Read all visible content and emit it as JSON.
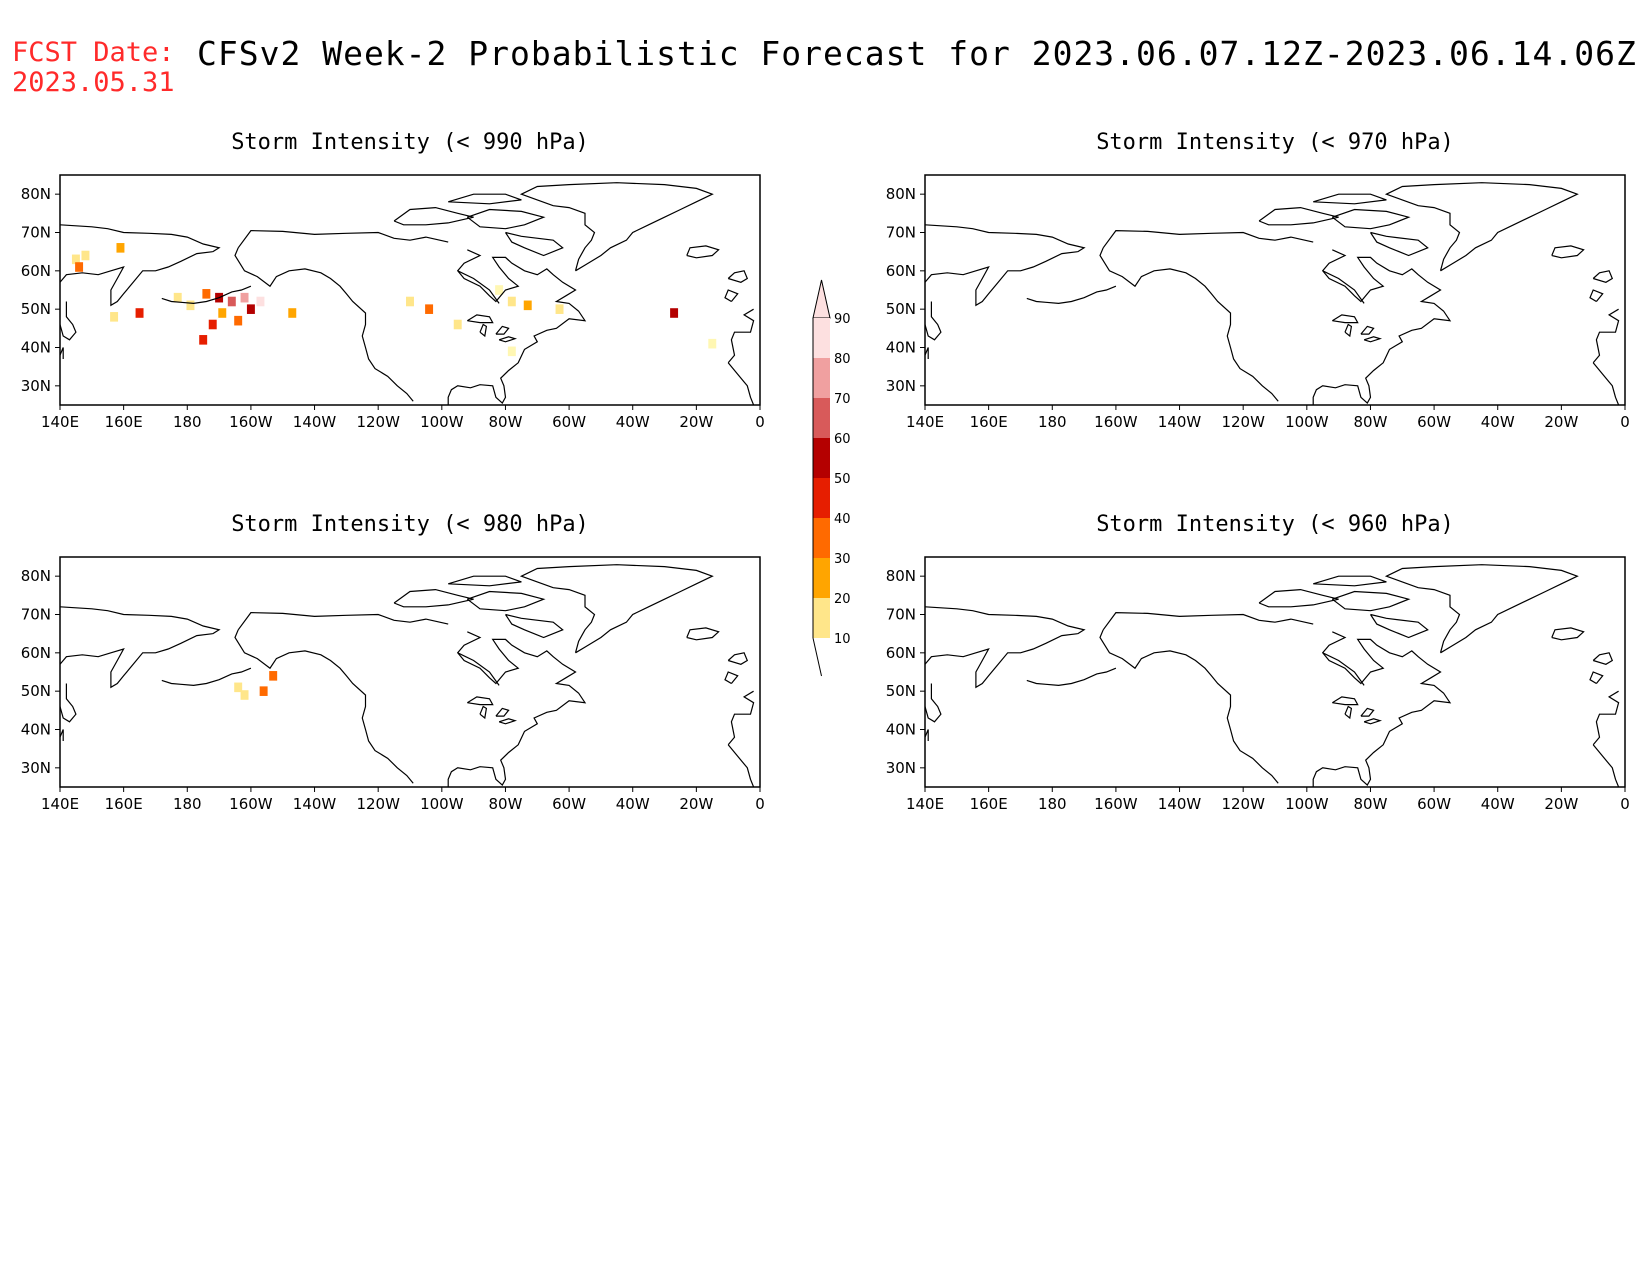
{
  "header": {
    "fcst_label": "FCST Date:",
    "fcst_date": "2023.05.31",
    "title": "CFSv2 Week-2 Probabilistic Forecast for 2023.06.07.12Z-2023.06.14.06Z"
  },
  "axes": {
    "lon_ticks": [
      "140E",
      "160E",
      "180",
      "160W",
      "140W",
      "120W",
      "100W",
      "80W",
      "60W",
      "40W",
      "20W",
      "0"
    ],
    "lat_ticks": [
      "80N",
      "70N",
      "60N",
      "50N",
      "40N",
      "30N"
    ]
  },
  "panels": [
    {
      "id": "p990",
      "title": "Storm Intensity (< 990 hPa)"
    },
    {
      "id": "p970",
      "title": "Storm Intensity (< 970 hPa)"
    },
    {
      "id": "p980",
      "title": "Storm Intensity (< 980 hPa)"
    },
    {
      "id": "p960",
      "title": "Storm Intensity (< 960 hPa)"
    }
  ],
  "colorbar": {
    "levels": [
      "10",
      "20",
      "30",
      "40",
      "50",
      "60",
      "70",
      "80",
      "90"
    ],
    "colors": [
      "#fff7b3",
      "#ffe68a",
      "#ffa500",
      "#ff6a00",
      "#e61e00",
      "#b40000",
      "#d85a5a",
      "#f0a0a0",
      "#fde0e0"
    ]
  },
  "probability_cells": {
    "p990": [
      {
        "lon": 145,
        "lat": 63,
        "p": 25
      },
      {
        "lon": 146,
        "lat": 61,
        "p": 45
      },
      {
        "lon": 148,
        "lat": 64,
        "p": 20
      },
      {
        "lon": 159,
        "lat": 66,
        "p": 35
      },
      {
        "lon": 157,
        "lat": 48,
        "p": 25
      },
      {
        "lon": 165,
        "lat": 49,
        "p": 50
      },
      {
        "lon": 177,
        "lat": 53,
        "p": 20
      },
      {
        "lon": 181,
        "lat": 51,
        "p": 25
      },
      {
        "lon": 186,
        "lat": 54,
        "p": 40
      },
      {
        "lon": 190,
        "lat": 53,
        "p": 60
      },
      {
        "lon": 194,
        "lat": 52,
        "p": 70
      },
      {
        "lon": 198,
        "lat": 53,
        "p": 80
      },
      {
        "lon": 200,
        "lat": 50,
        "p": 65
      },
      {
        "lon": 191,
        "lat": 49,
        "p": 35
      },
      {
        "lon": 188,
        "lat": 46,
        "p": 55
      },
      {
        "lon": 185,
        "lat": 42,
        "p": 50
      },
      {
        "lon": 196,
        "lat": 47,
        "p": 45
      },
      {
        "lon": 203,
        "lat": 52,
        "p": 90
      },
      {
        "lon": 213,
        "lat": 49,
        "p": 30
      },
      {
        "lon": 250,
        "lat": 52,
        "p": 20
      },
      {
        "lon": 256,
        "lat": 50,
        "p": 40
      },
      {
        "lon": 265,
        "lat": 46,
        "p": 25
      },
      {
        "lon": 278,
        "lat": 55,
        "p": 15
      },
      {
        "lon": 282,
        "lat": 52,
        "p": 20
      },
      {
        "lon": 287,
        "lat": 51,
        "p": 35
      },
      {
        "lon": 297,
        "lat": 50,
        "p": 25
      },
      {
        "lon": 333,
        "lat": 49,
        "p": 60
      },
      {
        "lon": 345,
        "lat": 41,
        "p": 15
      },
      {
        "lon": 282,
        "lat": 39,
        "p": 10
      }
    ],
    "p980": [
      {
        "lon": 196,
        "lat": 51,
        "p": 20
      },
      {
        "lon": 198,
        "lat": 49,
        "p": 25
      },
      {
        "lon": 204,
        "lat": 50,
        "p": 40
      },
      {
        "lon": 207,
        "lat": 54,
        "p": 45
      }
    ],
    "p970": [],
    "p960": []
  }
}
